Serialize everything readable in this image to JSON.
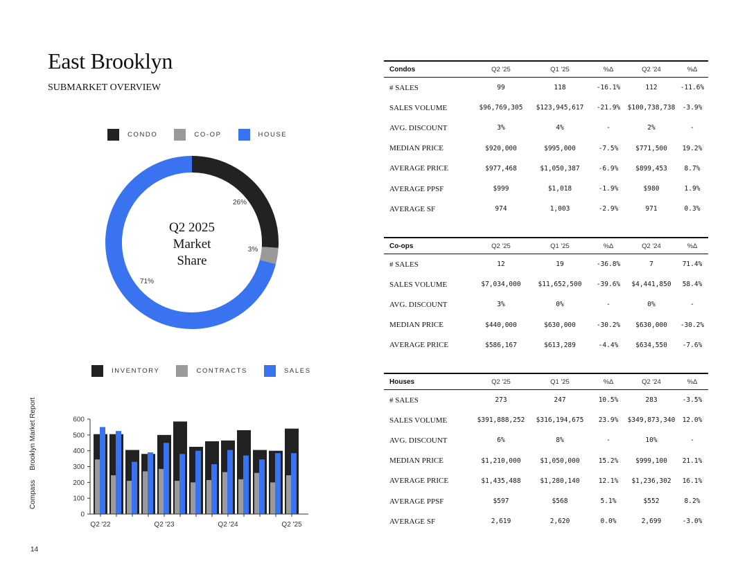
{
  "header": {
    "title": "East Brooklyn",
    "subtitle": "SUBMARKET OVERVIEW"
  },
  "donut_legend": [
    {
      "label": "CONDO",
      "color": "#222222"
    },
    {
      "label": "CO-OP",
      "color": "#9a9a9a"
    },
    {
      "label": "HOUSE",
      "color": "#3a73f0"
    }
  ],
  "donut": {
    "center_lines": [
      "Q2 2025",
      "Market",
      "Share"
    ],
    "slices": [
      {
        "name": "CONDO",
        "value": 26,
        "label": "26%",
        "color": "#222222"
      },
      {
        "name": "CO-OP",
        "value": 3,
        "label": "3%",
        "color": "#9a9a9a"
      },
      {
        "name": "HOUSE",
        "value": 71,
        "label": "71%",
        "color": "#3a73f0"
      }
    ]
  },
  "bar_legend": [
    {
      "label": "INVENTORY",
      "color": "#222222"
    },
    {
      "label": "CONTRACTS",
      "color": "#9a9a9a"
    },
    {
      "label": "SALES",
      "color": "#3a73f0"
    }
  ],
  "chart_data": {
    "type": "bar",
    "categories": [
      "Q2 '22",
      "Q3 '22",
      "Q4 '22",
      "Q1 '23",
      "Q2 '23",
      "Q3 '23",
      "Q4 '23",
      "Q1 '24",
      "Q2 '24",
      "Q3 '24",
      "Q4 '24",
      "Q1 '25",
      "Q2 '25"
    ],
    "x_tick_labels": [
      "Q2 '22",
      "Q2 '23",
      "Q2 '24",
      "Q2 '25"
    ],
    "series": [
      {
        "name": "INVENTORY",
        "color": "#222222",
        "values": [
          505,
          505,
          405,
          380,
          500,
          585,
          425,
          460,
          465,
          530,
          405,
          400,
          540
        ]
      },
      {
        "name": "CONTRACTS",
        "color": "#9a9a9a",
        "values": [
          345,
          245,
          210,
          270,
          285,
          210,
          200,
          215,
          265,
          220,
          260,
          200,
          245
        ]
      },
      {
        "name": "SALES",
        "color": "#3a73f0",
        "values": [
          550,
          525,
          330,
          390,
          450,
          380,
          400,
          315,
          405,
          370,
          345,
          385,
          385
        ]
      }
    ],
    "ylim": [
      0,
      600
    ],
    "yticks": [
      0,
      100,
      200,
      300,
      400,
      500,
      600
    ]
  },
  "side_label": {
    "brand": "Compass",
    "report": "Brooklyn Market Report"
  },
  "page_number": "14",
  "tables": [
    {
      "name": "Condos",
      "headers": [
        "Q2 '25",
        "Q1 '25",
        "%Δ",
        "Q2 '24",
        "%Δ"
      ],
      "rows": [
        {
          "label": "# SALES",
          "values": [
            "99",
            "118",
            "-16.1%",
            "112",
            "-11.6%"
          ]
        },
        {
          "label": "SALES VOLUME",
          "values": [
            "$96,769,305",
            "$123,945,617",
            "-21.9%",
            "$100,738,738",
            "-3.9%"
          ]
        },
        {
          "label": "AVG. DISCOUNT",
          "values": [
            "3%",
            "4%",
            "-",
            "2%",
            "-"
          ]
        },
        {
          "label": "MEDIAN PRICE",
          "values": [
            "$920,000",
            "$995,000",
            "-7.5%",
            "$771,500",
            "19.2%"
          ]
        },
        {
          "label": "AVERAGE PRICE",
          "values": [
            "$977,468",
            "$1,050,387",
            "-6.9%",
            "$899,453",
            "8.7%"
          ]
        },
        {
          "label": "AVERAGE PPSF",
          "values": [
            "$999",
            "$1,018",
            "-1.9%",
            "$980",
            "1.9%"
          ]
        },
        {
          "label": "AVERAGE SF",
          "values": [
            "974",
            "1,003",
            "-2.9%",
            "971",
            "0.3%"
          ]
        }
      ]
    },
    {
      "name": "Co-ops",
      "headers": [
        "Q2 '25",
        "Q1 '25",
        "%Δ",
        "Q2 '24",
        "%Δ"
      ],
      "rows": [
        {
          "label": "# SALES",
          "values": [
            "12",
            "19",
            "-36.8%",
            "7",
            "71.4%"
          ]
        },
        {
          "label": "SALES VOLUME",
          "values": [
            "$7,034,000",
            "$11,652,500",
            "-39.6%",
            "$4,441,850",
            "58.4%"
          ]
        },
        {
          "label": "AVG. DISCOUNT",
          "values": [
            "3%",
            "0%",
            "-",
            "0%",
            "-"
          ]
        },
        {
          "label": "MEDIAN PRICE",
          "values": [
            "$440,000",
            "$630,000",
            "-30.2%",
            "$630,000",
            "-30.2%"
          ]
        },
        {
          "label": "AVERAGE PRICE",
          "values": [
            "$586,167",
            "$613,289",
            "-4.4%",
            "$634,550",
            "-7.6%"
          ]
        }
      ]
    },
    {
      "name": "Houses",
      "headers": [
        "Q2 '25",
        "Q1 '25",
        "%Δ",
        "Q2 '24",
        "%Δ"
      ],
      "rows": [
        {
          "label": "# SALES",
          "values": [
            "273",
            "247",
            "10.5%",
            "283",
            "-3.5%"
          ]
        },
        {
          "label": "SALES VOLUME",
          "values": [
            "$391,888,252",
            "$316,194,675",
            "23.9%",
            "$349,873,340",
            "12.0%"
          ]
        },
        {
          "label": "AVG. DISCOUNT",
          "values": [
            "6%",
            "8%",
            "-",
            "10%",
            "-"
          ]
        },
        {
          "label": "MEDIAN PRICE",
          "values": [
            "$1,210,000",
            "$1,050,000",
            "15.2%",
            "$999,100",
            "21.1%"
          ]
        },
        {
          "label": "AVERAGE PRICE",
          "values": [
            "$1,435,488",
            "$1,280,140",
            "12.1%",
            "$1,236,302",
            "16.1%"
          ]
        },
        {
          "label": "AVERAGE PPSF",
          "values": [
            "$597",
            "$568",
            "5.1%",
            "$552",
            "8.2%"
          ]
        },
        {
          "label": "AVERAGE SF",
          "values": [
            "2,619",
            "2,620",
            "0.0%",
            "2,699",
            "-3.0%"
          ]
        }
      ]
    }
  ]
}
